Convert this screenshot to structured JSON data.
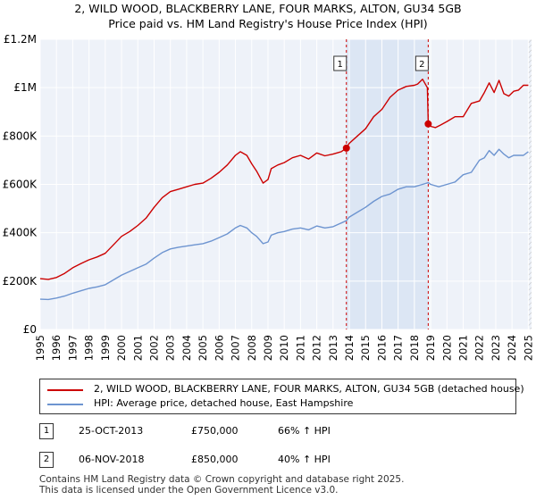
{
  "chart_data": {
    "type": "line",
    "title": "2, WILD WOOD, BLACKBERRY LANE, FOUR MARKS, ALTON, GU34 5GB",
    "subtitle": "Price paid vs. HM Land Registry's House Price Index (HPI)",
    "xlim": [
      1995,
      2025.2
    ],
    "ylim": [
      0,
      1200000
    ],
    "x_ticks": [
      "1995",
      "1996",
      "1997",
      "1998",
      "1999",
      "2000",
      "2001",
      "2002",
      "2003",
      "2004",
      "2005",
      "2006",
      "2007",
      "2008",
      "2009",
      "2010",
      "2011",
      "2012",
      "2013",
      "2014",
      "2015",
      "2016",
      "2017",
      "2018",
      "2019",
      "2020",
      "2021",
      "2022",
      "2023",
      "2024",
      "2025"
    ],
    "y_ticks": [
      {
        "value": 0,
        "label": "£0"
      },
      {
        "value": 200000,
        "label": "£200K"
      },
      {
        "value": 400000,
        "label": "£400K"
      },
      {
        "value": 600000,
        "label": "£600K"
      },
      {
        "value": 800000,
        "label": "£800K"
      },
      {
        "value": 1000000,
        "label": "£1M"
      },
      {
        "value": 1200000,
        "label": "£1.2M"
      }
    ],
    "grid": true,
    "series": [
      {
        "name": "2, WILD WOOD, BLACKBERRY LANE, FOUR MARKS, ALTON, GU34 5GB (detached house)",
        "color": "#cc0000",
        "x": [
          1995,
          1995.5,
          1996,
          1996.5,
          1997,
          1997.5,
          1998,
          1998.5,
          1999,
          1999.5,
          2000,
          2000.5,
          2001,
          2001.5,
          2002,
          2002.5,
          2003,
          2003.5,
          2004,
          2004.5,
          2005,
          2005.5,
          2006,
          2006.5,
          2007,
          2007.3,
          2007.7,
          2008,
          2008.3,
          2008.7,
          2009,
          2009.2,
          2009.6,
          2010,
          2010.5,
          2011,
          2011.5,
          2012,
          2012.5,
          2013,
          2013.5,
          2013.82,
          2014,
          2014.5,
          2015,
          2015.5,
          2016,
          2016.5,
          2017,
          2017.5,
          2018,
          2018.2,
          2018.5,
          2018.8,
          2018.85,
          2019,
          2019.3,
          2019.6,
          2020,
          2020.5,
          2021,
          2021.5,
          2022,
          2022.3,
          2022.6,
          2022.9,
          2023.2,
          2023.5,
          2023.8,
          2024.1,
          2024.4,
          2024.7,
          2025
        ],
        "values": [
          210000,
          207000,
          215000,
          232000,
          255000,
          272000,
          288000,
          300000,
          315000,
          350000,
          385000,
          405000,
          430000,
          460000,
          505000,
          545000,
          570000,
          580000,
          590000,
          600000,
          605000,
          625000,
          650000,
          680000,
          720000,
          735000,
          720000,
          685000,
          655000,
          605000,
          620000,
          665000,
          680000,
          690000,
          710000,
          720000,
          705000,
          730000,
          718000,
          725000,
          735000,
          750000,
          770000,
          800000,
          830000,
          880000,
          910000,
          960000,
          990000,
          1005000,
          1010000,
          1015000,
          1035000,
          1000000,
          850000,
          840000,
          835000,
          845000,
          860000,
          880000,
          880000,
          935000,
          945000,
          980000,
          1020000,
          980000,
          1030000,
          975000,
          965000,
          985000,
          990000,
          1010000,
          1010000
        ]
      },
      {
        "name": "HPI: Average price, detached house, East Hampshire",
        "color": "#6d94d0",
        "x": [
          1995,
          1995.5,
          1996,
          1996.5,
          1997,
          1997.5,
          1998,
          1998.5,
          1999,
          1999.5,
          2000,
          2000.5,
          2001,
          2001.5,
          2002,
          2002.5,
          2003,
          2003.5,
          2004,
          2004.5,
          2005,
          2005.5,
          2006,
          2006.5,
          2007,
          2007.3,
          2007.7,
          2008,
          2008.3,
          2008.7,
          2009,
          2009.2,
          2009.6,
          2010,
          2010.5,
          2011,
          2011.5,
          2012,
          2012.5,
          2013,
          2013.5,
          2013.82,
          2014,
          2014.5,
          2015,
          2015.5,
          2016,
          2016.5,
          2017,
          2017.5,
          2018,
          2018.5,
          2018.85,
          2019,
          2019.5,
          2020,
          2020.5,
          2021,
          2021.5,
          2022,
          2022.3,
          2022.6,
          2022.9,
          2023.2,
          2023.5,
          2023.8,
          2024.1,
          2024.4,
          2024.7,
          2025
        ],
        "values": [
          125000,
          124000,
          130000,
          138000,
          150000,
          160000,
          170000,
          176000,
          185000,
          205000,
          225000,
          240000,
          255000,
          270000,
          295000,
          318000,
          333000,
          340000,
          345000,
          350000,
          355000,
          365000,
          380000,
          395000,
          420000,
          430000,
          420000,
          400000,
          385000,
          355000,
          362000,
          390000,
          400000,
          405000,
          415000,
          420000,
          412000,
          428000,
          420000,
          425000,
          440000,
          450000,
          465000,
          485000,
          505000,
          530000,
          550000,
          560000,
          580000,
          590000,
          590000,
          600000,
          607000,
          600000,
          590000,
          600000,
          610000,
          640000,
          650000,
          700000,
          710000,
          740000,
          720000,
          745000,
          725000,
          710000,
          720000,
          720000,
          720000,
          735000
        ]
      }
    ],
    "annotations": [
      {
        "label": "1",
        "x": 2013.82,
        "value": 750000
      },
      {
        "label": "2",
        "x": 2018.85,
        "value": 850000
      }
    ],
    "shaded_region": {
      "x_start": 2013.82,
      "x_end": 2018.85
    },
    "forecast_hatch_start": 2025.0
  },
  "legend": {
    "property_label": "2, WILD WOOD, BLACKBERRY LANE, FOUR MARKS, ALTON, GU34 5GB (detached house)",
    "hpi_label": "HPI: Average price, detached house, East Hampshire",
    "property_color": "#cc0000",
    "hpi_color": "#6d94d0"
  },
  "transactions": [
    {
      "num": "1",
      "date": "25-OCT-2013",
      "price": "£750,000",
      "hpi": "66% ↑ HPI"
    },
    {
      "num": "2",
      "date": "06-NOV-2018",
      "price": "£850,000",
      "hpi": "40% ↑ HPI"
    }
  ],
  "footer": {
    "line1": "Contains HM Land Registry data © Crown copyright and database right 2025.",
    "line2": "This data is licensed under the Open Government Licence v3.0."
  }
}
